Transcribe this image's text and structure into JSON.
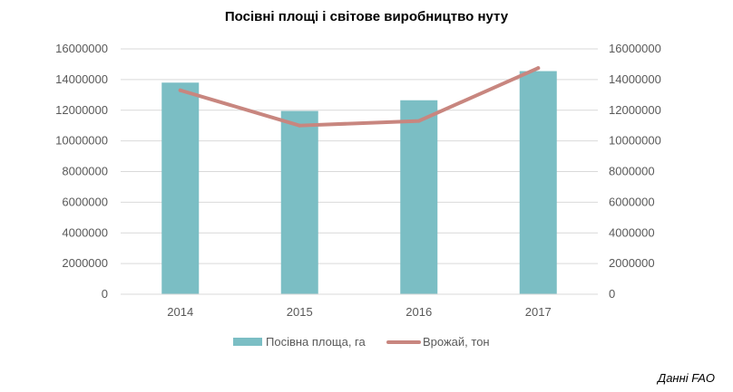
{
  "chart_data": {
    "type": "bar",
    "title": "Посівні площі і світове виробництво нуту",
    "categories": [
      "2014",
      "2015",
      "2016",
      "2017"
    ],
    "ylim": [
      0,
      16000000
    ],
    "y_ticks": [
      "0",
      "2000000",
      "4000000",
      "6000000",
      "8000000",
      "10000000",
      "12000000",
      "14000000",
      "16000000"
    ],
    "y2lim": [
      0,
      16000000
    ],
    "y2_ticks": [
      "0",
      "2000000",
      "4000000",
      "6000000",
      "8000000",
      "10000000",
      "12000000",
      "14000000",
      "16000000"
    ],
    "grid": true,
    "legend_position": "bottom",
    "series": [
      {
        "name": "Посівна площа, га",
        "type": "bar",
        "axis": "left",
        "color": "#7bbec4",
        "values": [
          13800000,
          11950000,
          12650000,
          14550000
        ]
      },
      {
        "name": "Врожай, тон",
        "type": "line",
        "axis": "right",
        "color": "#c8867f",
        "values": [
          13300000,
          11000000,
          11300000,
          14750000
        ]
      }
    ]
  },
  "footer": {
    "source": "Данні FAO"
  }
}
